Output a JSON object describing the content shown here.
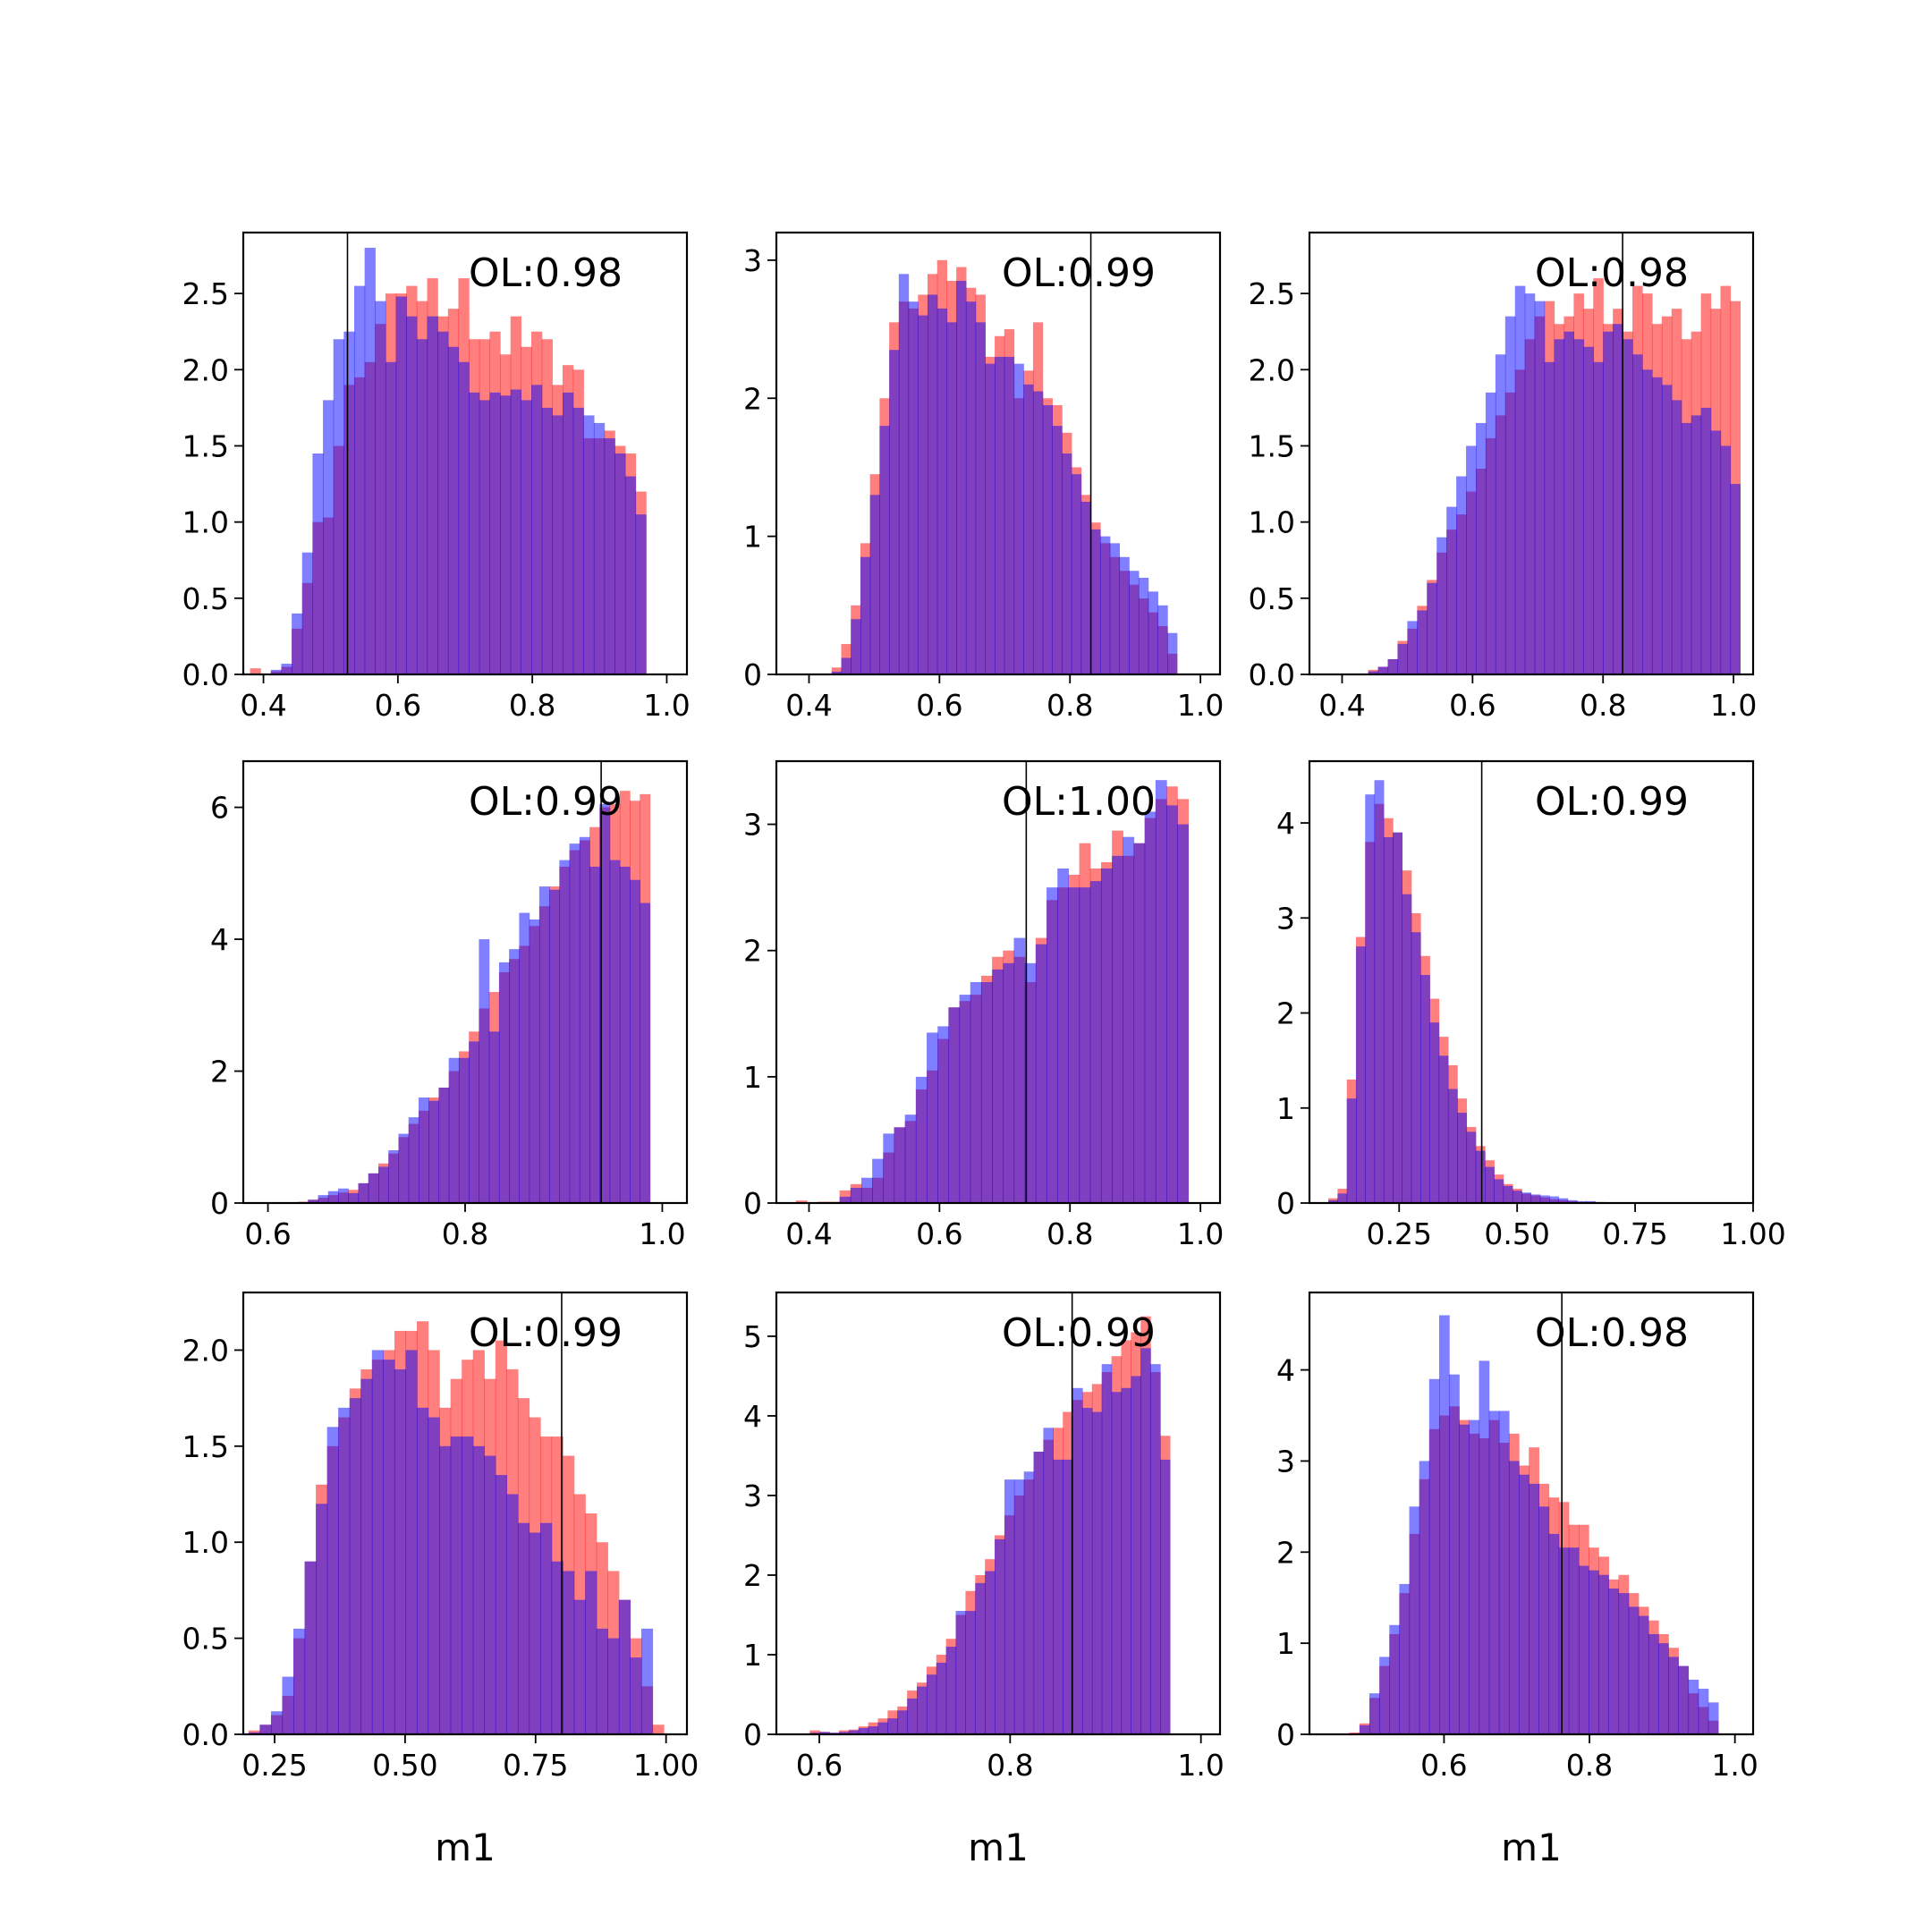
{
  "figure": {
    "colors": {
      "series_a": "#ff0000",
      "series_b": "#0000ff",
      "overlap": "#7f3fbf",
      "marker_line": "#000000"
    },
    "bar_alpha": 0.5,
    "xlabel": "m1"
  },
  "chart_data": [
    {
      "type": "histogram",
      "row": 0,
      "col": 0,
      "annotation": "OL:0.98",
      "xlim": [
        0.37,
        1.03
      ],
      "ylim": [
        0,
        2.9
      ],
      "xticks": [
        0.4,
        0.6,
        0.8,
        1.0
      ],
      "xtick_labels": [
        "0.4",
        "0.6",
        "0.8",
        "1.0"
      ],
      "yticks": [
        0,
        0.5,
        1.0,
        1.5,
        2.0,
        2.5
      ],
      "ytick_labels": [
        "0.0",
        "0.5",
        "1.0",
        "1.5",
        "2.0",
        "2.5"
      ],
      "vline": 0.525,
      "bin_start": 0.38,
      "bin_width": 0.0155,
      "series": [
        {
          "name": "",
          "color": "#ff0000",
          "values": [
            0.04,
            0,
            0.02,
            0.05,
            0.3,
            0.6,
            1.0,
            1.03,
            1.5,
            1.9,
            1.95,
            2.05,
            2.3,
            2.5,
            2.5,
            2.55,
            2.45,
            2.6,
            2.35,
            2.4,
            2.6,
            2.2,
            2.2,
            2.25,
            2.1,
            2.35,
            2.15,
            2.25,
            2.2,
            1.9,
            2.03,
            2.0,
            1.55,
            1.55,
            1.6,
            1.5,
            1.45,
            1.2
          ]
        },
        {
          "name": "",
          "color": "#0000ff",
          "values": [
            0,
            0,
            0.03,
            0.07,
            0.4,
            0.8,
            1.45,
            1.8,
            2.2,
            2.25,
            2.55,
            2.8,
            2.45,
            2.05,
            2.48,
            2.35,
            2.2,
            2.35,
            2.25,
            2.15,
            2.05,
            1.85,
            1.8,
            1.85,
            1.83,
            1.87,
            1.8,
            1.9,
            1.75,
            1.7,
            1.85,
            1.75,
            1.7,
            1.65,
            1.55,
            1.45,
            1.3,
            1.05
          ]
        }
      ]
    },
    {
      "type": "histogram",
      "row": 0,
      "col": 1,
      "annotation": "OL:0.99",
      "xlim": [
        0.35,
        1.03
      ],
      "ylim": [
        0,
        3.2
      ],
      "xticks": [
        0.4,
        0.6,
        0.8,
        1.0
      ],
      "xtick_labels": [
        "0.4",
        "0.6",
        "0.8",
        "1.0"
      ],
      "yticks": [
        0,
        1,
        2,
        3
      ],
      "ytick_labels": [
        "0",
        "1",
        "2",
        "3"
      ],
      "vline": 0.832,
      "bin_start": 0.42,
      "bin_width": 0.0147,
      "series": [
        {
          "name": "",
          "color": "#ff0000",
          "values": [
            0,
            0.05,
            0.22,
            0.5,
            0.95,
            1.45,
            2.0,
            2.55,
            2.7,
            2.65,
            2.75,
            2.9,
            3.0,
            2.85,
            2.95,
            2.8,
            2.75,
            2.3,
            2.45,
            2.5,
            2.0,
            2.2,
            2.55,
            2.0,
            1.95,
            1.75,
            1.5,
            1.3,
            1.1,
            0.95,
            0.85,
            0.75,
            0.65,
            0.55,
            0.45,
            0.35,
            0.15
          ]
        },
        {
          "name": "",
          "color": "#0000ff",
          "values": [
            0,
            0.02,
            0.12,
            0.4,
            0.85,
            1.3,
            1.8,
            2.35,
            2.9,
            2.7,
            2.6,
            2.75,
            2.65,
            2.55,
            2.85,
            2.7,
            2.55,
            2.25,
            2.3,
            2.3,
            2.25,
            2.1,
            2.05,
            1.95,
            1.8,
            1.6,
            1.45,
            1.25,
            1.05,
            1.0,
            0.95,
            0.85,
            0.75,
            0.7,
            0.6,
            0.5,
            0.3
          ]
        }
      ]
    },
    {
      "type": "histogram",
      "row": 0,
      "col": 2,
      "annotation": "OL:0.98",
      "xlim": [
        0.35,
        1.03
      ],
      "ylim": [
        0,
        2.9
      ],
      "xticks": [
        0.4,
        0.6,
        0.8,
        1.0
      ],
      "xtick_labels": [
        "0.4",
        "0.6",
        "0.8",
        "1.0"
      ],
      "yticks": [
        0,
        0.5,
        1.0,
        1.5,
        2.0,
        2.5
      ],
      "ytick_labels": [
        "0.0",
        "0.5",
        "1.0",
        "1.5",
        "2.0",
        "2.5"
      ],
      "vline": 0.83,
      "bin_start": 0.44,
      "bin_width": 0.015,
      "series": [
        {
          "name": "",
          "color": "#ff0000",
          "values": [
            0.03,
            0.05,
            0.1,
            0.22,
            0.3,
            0.45,
            0.62,
            0.8,
            0.95,
            1.05,
            1.2,
            1.35,
            1.55,
            1.7,
            1.85,
            2.0,
            2.2,
            2.35,
            2.45,
            2.3,
            2.35,
            2.5,
            2.4,
            2.6,
            2.3,
            2.4,
            2.25,
            2.55,
            2.5,
            2.3,
            2.35,
            2.4,
            2.2,
            2.25,
            2.5,
            2.4,
            2.55,
            2.45
          ]
        },
        {
          "name": "",
          "color": "#0000ff",
          "values": [
            0.02,
            0.05,
            0.1,
            0.2,
            0.35,
            0.42,
            0.6,
            0.9,
            1.1,
            1.3,
            1.5,
            1.65,
            1.85,
            2.1,
            2.35,
            2.55,
            2.5,
            2.45,
            2.05,
            2.2,
            2.25,
            2.2,
            2.15,
            2.05,
            2.25,
            2.3,
            2.2,
            2.1,
            2.0,
            1.95,
            1.9,
            1.8,
            1.65,
            1.7,
            1.75,
            1.6,
            1.5,
            1.25
          ]
        }
      ]
    },
    {
      "type": "histogram",
      "row": 1,
      "col": 0,
      "annotation": "OL:0.99",
      "xlim": [
        0.575,
        1.025
      ],
      "ylim": [
        0,
        6.7
      ],
      "xticks": [
        0.6,
        0.8,
        1.0
      ],
      "xtick_labels": [
        "0.6",
        "0.8",
        "1.0"
      ],
      "yticks": [
        0,
        2,
        4,
        6
      ],
      "ytick_labels": [
        "0",
        "2",
        "4",
        "6"
      ],
      "vline": 0.938,
      "bin_start": 0.61,
      "bin_width": 0.0102,
      "series": [
        {
          "name": "",
          "color": "#ff0000",
          "values": [
            0,
            0,
            0.02,
            0.05,
            0.08,
            0.12,
            0.16,
            0.2,
            0.3,
            0.45,
            0.6,
            0.75,
            1.0,
            1.2,
            1.4,
            1.6,
            1.75,
            2.0,
            2.3,
            2.6,
            2.95,
            3.2,
            3.5,
            3.7,
            3.9,
            4.2,
            4.5,
            4.8,
            5.1,
            5.35,
            5.5,
            5.7,
            6.0,
            6.05,
            6.25,
            6.1,
            6.2
          ]
        },
        {
          "name": "",
          "color": "#0000ff",
          "values": [
            0,
            0,
            0.01,
            0.05,
            0.12,
            0.18,
            0.22,
            0.15,
            0.3,
            0.45,
            0.55,
            0.8,
            1.05,
            1.3,
            1.6,
            1.55,
            1.75,
            2.2,
            2.2,
            2.45,
            4.0,
            2.6,
            3.65,
            3.85,
            4.4,
            4.3,
            4.8,
            4.75,
            5.2,
            5.45,
            5.55,
            5.1,
            6.05,
            5.2,
            5.1,
            4.9,
            4.55
          ]
        }
      ]
    },
    {
      "type": "histogram",
      "row": 1,
      "col": 1,
      "annotation": "OL:1.00",
      "xlim": [
        0.35,
        1.03
      ],
      "ylim": [
        0,
        3.5
      ],
      "xticks": [
        0.4,
        0.6,
        0.8,
        1.0
      ],
      "xtick_labels": [
        "0.4",
        "0.6",
        "0.8",
        "1.0"
      ],
      "yticks": [
        0,
        1,
        2,
        3
      ],
      "ytick_labels": [
        "0",
        "1",
        "2",
        "3"
      ],
      "vline": 0.733,
      "bin_start": 0.38,
      "bin_width": 0.0167,
      "series": [
        {
          "name": "",
          "color": "#ff0000",
          "values": [
            0.02,
            0,
            0.01,
            0.01,
            0.1,
            0.15,
            0.12,
            0.2,
            0.4,
            0.6,
            0.65,
            0.9,
            1.05,
            1.3,
            1.55,
            1.6,
            1.65,
            1.8,
            1.95,
            2.0,
            1.95,
            1.75,
            2.1,
            2.4,
            2.5,
            2.6,
            2.85,
            2.65,
            2.7,
            2.95,
            2.75,
            2.85,
            3.05,
            3.2,
            3.3,
            3.2
          ]
        },
        {
          "name": "",
          "color": "#0000ff",
          "values": [
            0,
            0,
            0,
            0,
            0.05,
            0.12,
            0.2,
            0.35,
            0.55,
            0.6,
            0.7,
            1.0,
            1.35,
            1.4,
            1.55,
            1.65,
            1.75,
            1.75,
            1.85,
            1.9,
            2.1,
            1.9,
            2.05,
            2.5,
            2.65,
            2.5,
            2.5,
            2.55,
            2.65,
            2.75,
            2.9,
            2.85,
            3.1,
            3.35,
            3.15,
            3.0
          ]
        }
      ]
    },
    {
      "type": "histogram",
      "row": 1,
      "col": 2,
      "annotation": "OL:0.99",
      "xlim": [
        0.06,
        1.0
      ],
      "ylim": [
        0,
        4.65
      ],
      "xticks": [
        0.25,
        0.5,
        0.75,
        1.0
      ],
      "xtick_labels": [
        "0.25",
        "0.50",
        "0.75",
        "1.00"
      ],
      "yticks": [
        0,
        1,
        2,
        3,
        4
      ],
      "ytick_labels": [
        "0",
        "1",
        "2",
        "3",
        "4"
      ],
      "vline": 0.425,
      "bin_start": 0.1,
      "bin_width": 0.0195,
      "series": [
        {
          "name": "",
          "color": "#ff0000",
          "values": [
            0.05,
            0.15,
            1.3,
            2.8,
            3.8,
            4.2,
            4.05,
            3.9,
            3.5,
            3.05,
            2.6,
            2.15,
            1.75,
            1.45,
            1.1,
            0.8,
            0.6,
            0.45,
            0.3,
            0.2,
            0.15,
            0.1,
            0.08,
            0.06,
            0.04,
            0.03,
            0.02,
            0.01,
            0.01,
            0.01,
            0,
            0,
            0,
            0,
            0,
            0,
            0,
            0,
            0,
            0,
            0,
            0,
            0,
            0,
            0,
            0
          ]
        },
        {
          "name": "",
          "color": "#0000ff",
          "values": [
            0.03,
            0.1,
            1.1,
            2.7,
            4.3,
            4.45,
            3.85,
            3.9,
            3.25,
            2.85,
            2.4,
            1.9,
            1.55,
            1.2,
            0.95,
            0.75,
            0.55,
            0.38,
            0.25,
            0.18,
            0.13,
            0.11,
            0.09,
            0.08,
            0.07,
            0.05,
            0.03,
            0.02,
            0.02,
            0.01,
            0,
            0,
            0,
            0,
            0,
            0,
            0,
            0,
            0,
            0,
            0,
            0,
            0,
            0,
            0,
            0
          ]
        }
      ]
    },
    {
      "type": "histogram",
      "row": 2,
      "col": 0,
      "annotation": "OL:0.99",
      "xlim": [
        0.19,
        1.04
      ],
      "ylim": [
        0,
        2.3
      ],
      "xticks": [
        0.25,
        0.5,
        0.75,
        1.0
      ],
      "xtick_labels": [
        "0.25",
        "0.50",
        "0.75",
        "1.00"
      ],
      "yticks": [
        0,
        0.5,
        1.0,
        1.5,
        2.0
      ],
      "ytick_labels": [
        "0.0",
        "0.5",
        "1.0",
        "1.5",
        "2.0"
      ],
      "vline": 0.8,
      "bin_start": 0.2,
      "bin_width": 0.0215,
      "series": [
        {
          "name": "",
          "color": "#ff0000",
          "values": [
            0.02,
            0.05,
            0.1,
            0.2,
            0.5,
            0.9,
            1.3,
            1.5,
            1.65,
            1.8,
            1.9,
            1.95,
            2.0,
            2.1,
            2.1,
            2.15,
            2.0,
            1.7,
            1.85,
            1.95,
            2.0,
            1.85,
            2.05,
            1.9,
            1.75,
            1.65,
            1.55,
            1.55,
            1.45,
            1.25,
            1.15,
            1.0,
            0.85,
            0.7,
            0.5,
            0.25,
            0.05
          ]
        },
        {
          "name": "",
          "color": "#0000ff",
          "values": [
            0.01,
            0.05,
            0.12,
            0.3,
            0.55,
            0.9,
            1.2,
            1.6,
            1.7,
            1.75,
            1.85,
            2.0,
            1.95,
            1.9,
            2.0,
            1.7,
            1.65,
            1.5,
            1.55,
            1.55,
            1.5,
            1.45,
            1.35,
            1.25,
            1.1,
            1.05,
            1.1,
            0.9,
            0.85,
            0.7,
            0.85,
            0.55,
            0.5,
            0.7,
            0.4,
            0.55
          ]
        }
      ]
    },
    {
      "type": "histogram",
      "row": 2,
      "col": 1,
      "annotation": "OL:0.99",
      "xlim": [
        0.555,
        1.02
      ],
      "ylim": [
        0,
        5.55
      ],
      "xticks": [
        0.6,
        0.8,
        1.0
      ],
      "xtick_labels": [
        "0.6",
        "0.8",
        "1.0"
      ],
      "yticks": [
        0,
        1,
        2,
        3,
        4,
        5
      ],
      "ytick_labels": [
        "0",
        "1",
        "2",
        "3",
        "4",
        "5"
      ],
      "vline": 0.865,
      "bin_start": 0.59,
      "bin_width": 0.0102,
      "series": [
        {
          "name": "",
          "color": "#ff0000",
          "values": [
            0.05,
            0.03,
            0.02,
            0.05,
            0.06,
            0.1,
            0.15,
            0.2,
            0.3,
            0.35,
            0.55,
            0.65,
            0.85,
            1.0,
            1.2,
            1.5,
            1.8,
            2.0,
            2.2,
            2.5,
            2.75,
            3.0,
            3.2,
            3.55,
            3.7,
            3.85,
            4.05,
            4.2,
            4.3,
            4.4,
            4.55,
            4.75,
            4.95,
            5.05,
            5.25,
            4.55,
            3.75
          ]
        },
        {
          "name": "",
          "color": "#0000ff",
          "values": [
            0.02,
            0.03,
            0.02,
            0.03,
            0.05,
            0.08,
            0.1,
            0.15,
            0.2,
            0.3,
            0.45,
            0.6,
            0.75,
            0.9,
            1.1,
            1.55,
            1.55,
            1.9,
            2.05,
            2.45,
            3.2,
            3.2,
            3.3,
            3.55,
            3.85,
            3.45,
            3.45,
            4.35,
            4.1,
            4.05,
            4.65,
            4.3,
            4.35,
            4.5,
            4.85,
            4.65,
            3.45
          ]
        }
      ]
    },
    {
      "type": "histogram",
      "row": 2,
      "col": 2,
      "annotation": "OL:0.98",
      "xlim": [
        0.415,
        1.025
      ],
      "ylim": [
        0,
        4.85
      ],
      "xticks": [
        0.6,
        0.8,
        1.0
      ],
      "xtick_labels": [
        "0.6",
        "0.8",
        "1.0"
      ],
      "yticks": [
        0,
        1,
        2,
        3,
        4
      ],
      "ytick_labels": [
        "0",
        "1",
        "2",
        "3",
        "4"
      ],
      "vline": 0.762,
      "bin_start": 0.47,
      "bin_width": 0.0137,
      "series": [
        {
          "name": "",
          "color": "#ff0000",
          "values": [
            0.02,
            0.12,
            0.4,
            0.75,
            1.1,
            1.55,
            2.2,
            2.8,
            3.35,
            3.5,
            3.6,
            3.45,
            3.3,
            3.25,
            3.45,
            3.2,
            3.3,
            2.95,
            3.15,
            2.75,
            2.6,
            2.55,
            2.3,
            2.3,
            2.05,
            1.95,
            1.7,
            1.75,
            1.55,
            1.4,
            1.25,
            1.1,
            0.95,
            0.75,
            0.45,
            0.3,
            0.15
          ]
        },
        {
          "name": "",
          "color": "#0000ff",
          "values": [
            0,
            0.1,
            0.45,
            0.85,
            1.2,
            1.65,
            2.5,
            3.0,
            3.9,
            4.6,
            3.95,
            3.4,
            3.45,
            4.1,
            3.55,
            3.55,
            3.0,
            2.85,
            2.75,
            2.5,
            2.2,
            2.05,
            2.05,
            1.85,
            1.8,
            1.75,
            1.6,
            1.55,
            1.4,
            1.3,
            1.1,
            1.0,
            0.85,
            0.75,
            0.6,
            0.5,
            0.35
          ]
        }
      ]
    }
  ]
}
